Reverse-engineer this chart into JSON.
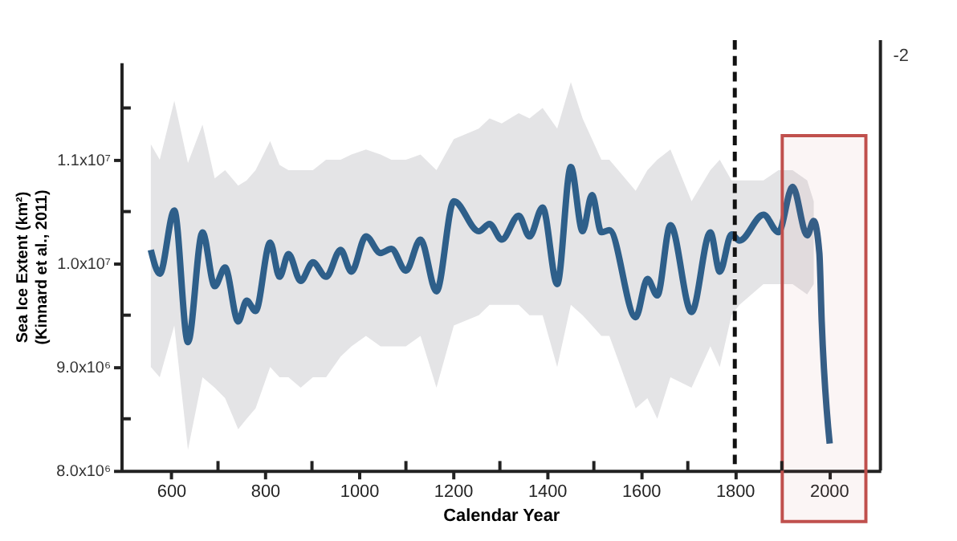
{
  "chart_data": {
    "type": "line",
    "xlabel": "Calendar Year",
    "ylabel": "Sea Ice Extent (km²)\n(Kinnard et al., 2011)",
    "xlim": [
      494,
      2110
    ],
    "ylim": [
      8000000,
      11940000
    ],
    "xticks": [
      600,
      {
        "value": 700,
        "label": null
      },
      800,
      {
        "value": 900,
        "label": null
      },
      1000,
      {
        "value": 1100,
        "label": null
      },
      1200,
      {
        "value": 1300,
        "label": null
      },
      1400,
      {
        "value": 1500,
        "label": null
      },
      1600,
      {
        "value": 1700,
        "label": null
      },
      1800,
      {
        "value": 1900,
        "label": null
      },
      2000
    ],
    "yticks": [
      {
        "value": 8000000,
        "label": "8.0x10⁶"
      },
      {
        "value": 8500000,
        "label": null
      },
      {
        "value": 9000000,
        "label": "9.0x10⁶"
      },
      {
        "value": 9500000,
        "label": null
      },
      {
        "value": 10000000,
        "label": "1.0x10⁷"
      },
      {
        "value": 10500000,
        "label": null
      },
      {
        "value": 11000000,
        "label": "1.1x10⁷"
      },
      {
        "value": 11500000,
        "label": null
      }
    ],
    "grid": false,
    "marker": "none",
    "line_style": "solid",
    "series": [
      {
        "color": "#2e5f8a",
        "x": [
          557,
          576,
          607,
          636,
          667,
          693,
          715,
          743,
          761,
          780,
          811,
          831,
          850,
          876,
          902,
          930,
          961,
          984,
          1015,
          1046,
          1069,
          1100,
          1131,
          1165,
          1202,
          1255,
          1278,
          1304,
          1340,
          1363,
          1391,
          1422,
          1451,
          1476,
          1496,
          1516,
          1533,
          1589,
          1614,
          1635,
          1663,
          1708,
          1748,
          1768,
          1793,
          1810,
          1861,
          1893,
          1923,
          1954,
          1968,
          1980,
          1985,
          2002
        ],
        "values": [
          10130000,
          9900000,
          10510000,
          9240000,
          10300000,
          9780000,
          9960000,
          9440000,
          9640000,
          9540000,
          10200000,
          9870000,
          10090000,
          9830000,
          10010000,
          9870000,
          10130000,
          9920000,
          10260000,
          10100000,
          10140000,
          9930000,
          10230000,
          9730000,
          10600000,
          10310000,
          10380000,
          10230000,
          10460000,
          10260000,
          10540000,
          9800000,
          10930000,
          10310000,
          10660000,
          10300000,
          10320000,
          9480000,
          9850000,
          9690000,
          10370000,
          9530000,
          10300000,
          9920000,
          10280000,
          10220000,
          10470000,
          10300000,
          10740000,
          10270000,
          10410000,
          10100000,
          9440000,
          8260000
        ],
        "lower": [
          9000000,
          8900000,
          9400000,
          8200000,
          8900000,
          8800000,
          8700000,
          8400000,
          8500000,
          8600000,
          9000000,
          8900000,
          8900000,
          8800000,
          8900000,
          8900000,
          9100000,
          9200000,
          9300000,
          9200000,
          9200000,
          9200000,
          9300000,
          8800000,
          9400000,
          9500000,
          9600000,
          9600000,
          9600000,
          9500000,
          9500000,
          9000000,
          9600000,
          9500000,
          9400000,
          9300000,
          9300000,
          8600000,
          8700000,
          8500000,
          8900000,
          8800000,
          9200000,
          9000000,
          9500000,
          9600000,
          9800000,
          9800000,
          9800000,
          9700000,
          9800000,
          null,
          null,
          null
        ],
        "upper": [
          11150000,
          11000000,
          11570000,
          10970000,
          11340000,
          10820000,
          10900000,
          10750000,
          10800000,
          10900000,
          11180000,
          10950000,
          10900000,
          10900000,
          10900000,
          11000000,
          11000000,
          11050000,
          11100000,
          11050000,
          11000000,
          11000000,
          11050000,
          10900000,
          11200000,
          11300000,
          11400000,
          11350000,
          11450000,
          11400000,
          11500000,
          11300000,
          11750000,
          11400000,
          11200000,
          11000000,
          11000000,
          10700000,
          10900000,
          11000000,
          11100000,
          10600000,
          10900000,
          11000000,
          10800000,
          10800000,
          10800000,
          10900000,
          10900000,
          10800000,
          10600000,
          null,
          null,
          null
        ]
      }
    ],
    "ref_lines": [
      {
        "axis": "x",
        "value": 1800,
        "color": "#111111",
        "line_style": "dashed"
      }
    ],
    "bands": [
      {
        "axis": "x",
        "from": 1901,
        "to": 2079,
        "color": "#c0504d"
      }
    ],
    "annotations": [
      "-2"
    ]
  }
}
